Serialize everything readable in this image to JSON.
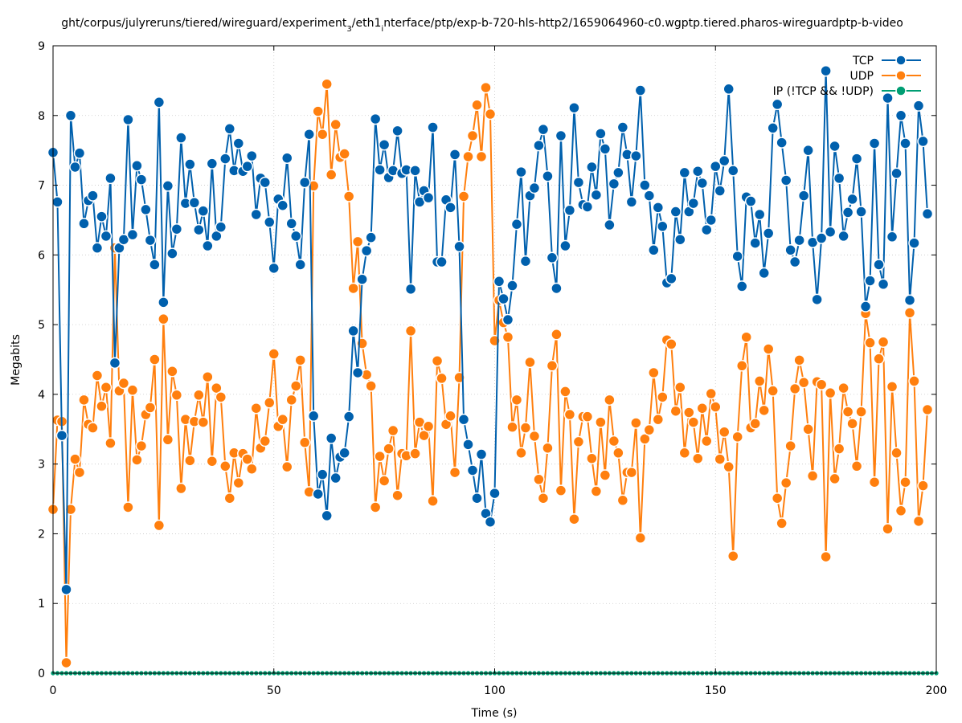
{
  "chart_data": {
    "type": "line",
    "title": "ght/corpus/julyreruns/tiered/wireguard/experiment_3/eth1_interface/ptp/exp-b-720-hls-http2/1659064960-c0.wgptp.tiered.pharos-wireguardptp-b-video",
    "xlabel": "Time (s)",
    "ylabel": "Megabits",
    "xlim": [
      0,
      200
    ],
    "ylim": [
      0,
      9
    ],
    "xticks": [
      0,
      50,
      100,
      150,
      200
    ],
    "yticks": [
      0,
      1,
      2,
      3,
      4,
      5,
      6,
      7,
      8,
      9
    ],
    "grid": true,
    "legend_position": "top-right",
    "x_step": 1,
    "series": [
      {
        "name": "TCP",
        "color": "#0060ad",
        "values": [
          7.47,
          6.76,
          3.41,
          1.2,
          8.0,
          7.26,
          7.46,
          6.45,
          6.78,
          6.85,
          6.1,
          6.55,
          6.27,
          7.1,
          4.45,
          6.1,
          6.22,
          7.94,
          6.29,
          7.28,
          7.08,
          6.65,
          6.21,
          5.86,
          8.19,
          5.32,
          6.99,
          6.02,
          6.37,
          7.68,
          6.74,
          7.3,
          6.75,
          6.36,
          6.63,
          6.13,
          7.31,
          6.27,
          6.4,
          7.38,
          7.81,
          7.21,
          7.6,
          7.2,
          7.27,
          7.42,
          6.58,
          7.1,
          7.04,
          6.47,
          5.81,
          6.8,
          6.71,
          7.39,
          6.45,
          6.27,
          5.86,
          7.04,
          7.73,
          3.69,
          2.57,
          2.85,
          2.26,
          3.37,
          2.8,
          3.1,
          3.16,
          3.68,
          4.91,
          4.31,
          5.65,
          6.06,
          6.25,
          7.95,
          7.22,
          7.58,
          7.11,
          7.21,
          7.78,
          7.17,
          7.22,
          5.51,
          7.21,
          6.76,
          6.92,
          6.82,
          7.83,
          5.9,
          5.9,
          6.79,
          6.68,
          7.44,
          6.12,
          3.64,
          3.28,
          2.91,
          2.51,
          3.14,
          2.29,
          2.17,
          2.58,
          5.62,
          5.37,
          5.07,
          5.56,
          6.44,
          7.19,
          5.91,
          6.85,
          6.96,
          7.57,
          7.8,
          7.13,
          5.96,
          5.52,
          7.71,
          6.13,
          6.64,
          8.11,
          7.04,
          6.72,
          6.69,
          7.26,
          6.86,
          7.74,
          7.52,
          6.43,
          7.02,
          7.18,
          7.83,
          7.44,
          6.76,
          7.42,
          8.36,
          7.0,
          6.85,
          6.07,
          6.68,
          6.41,
          5.6,
          5.66,
          6.62,
          6.22,
          7.18,
          6.62,
          6.74,
          7.2,
          7.03,
          6.36,
          6.5,
          7.27,
          6.92,
          7.35,
          8.38,
          7.21,
          5.98,
          5.55,
          6.83,
          6.77,
          6.17,
          6.58,
          5.74,
          6.31,
          7.82,
          8.16,
          7.61,
          7.07,
          6.07,
          5.9,
          6.21,
          6.85,
          7.5,
          6.18,
          5.36,
          6.24,
          8.64,
          6.33,
          7.56,
          7.1,
          6.27,
          6.61,
          6.8,
          7.38,
          6.62,
          5.26,
          5.63,
          7.6,
          5.86,
          5.58,
          8.25,
          6.26,
          7.17,
          8.0,
          7.6,
          5.35,
          6.17,
          8.14,
          7.63,
          6.59
        ]
      },
      {
        "name": "UDP",
        "color": "#ff7f0e",
        "values": [
          2.35,
          3.63,
          3.61,
          0.15,
          2.35,
          3.07,
          2.88,
          3.92,
          3.57,
          3.52,
          4.27,
          3.83,
          4.1,
          3.3,
          6.1,
          4.05,
          4.16,
          2.38,
          4.06,
          3.06,
          3.26,
          3.71,
          3.81,
          4.5,
          2.12,
          5.08,
          3.35,
          4.33,
          3.99,
          2.65,
          3.64,
          3.05,
          3.61,
          3.99,
          3.6,
          4.25,
          3.04,
          4.09,
          3.96,
          2.97,
          2.51,
          3.16,
          2.73,
          3.15,
          3.07,
          2.93,
          3.8,
          3.23,
          3.33,
          3.88,
          4.58,
          3.54,
          3.64,
          2.96,
          3.92,
          4.12,
          4.49,
          3.31,
          2.6,
          6.99,
          8.06,
          7.73,
          8.45,
          7.15,
          7.87,
          7.4,
          7.45,
          6.84,
          5.52,
          6.19,
          4.73,
          4.28,
          4.12,
          2.38,
          3.11,
          2.76,
          3.22,
          3.48,
          2.55,
          3.15,
          3.12,
          4.91,
          3.15,
          3.6,
          3.41,
          3.54,
          2.47,
          4.48,
          4.23,
          3.57,
          3.69,
          2.88,
          4.24,
          6.84,
          7.41,
          7.71,
          8.15,
          7.41,
          8.4,
          8.02,
          4.77,
          5.35,
          5.03,
          4.82,
          3.53,
          3.92,
          3.16,
          3.52,
          4.46,
          3.4,
          2.78,
          2.51,
          3.23,
          4.41,
          4.86,
          2.62,
          4.04,
          3.71,
          2.21,
          3.32,
          3.68,
          3.68,
          3.08,
          2.61,
          3.6,
          2.84,
          3.92,
          3.33,
          3.16,
          2.48,
          2.88,
          2.88,
          3.59,
          1.94,
          3.36,
          3.49,
          4.31,
          3.64,
          3.96,
          4.78,
          4.72,
          3.76,
          4.1,
          3.16,
          3.74,
          3.6,
          3.08,
          3.8,
          3.33,
          4.01,
          3.82,
          3.07,
          3.46,
          2.96,
          1.68,
          3.39,
          4.41,
          4.82,
          3.52,
          3.58,
          4.19,
          3.77,
          4.65,
          4.05,
          2.51,
          2.15,
          2.73,
          3.26,
          4.08,
          4.49,
          4.17,
          3.5,
          2.83,
          4.18,
          4.14,
          1.67,
          4.02,
          2.79,
          3.22,
          4.09,
          3.75,
          3.58,
          2.97,
          3.75,
          5.16,
          4.74,
          2.74,
          4.51,
          4.75,
          2.07,
          4.11,
          3.16,
          2.33,
          2.74,
          5.17,
          4.19,
          2.18,
          2.69,
          3.78
        ]
      },
      {
        "name": "IP (!TCP && !UDP)",
        "color": "#009e73",
        "values": [
          0,
          0,
          0,
          0,
          0,
          0,
          0,
          0,
          0,
          0,
          0,
          0,
          0,
          0,
          0,
          0,
          0,
          0,
          0,
          0,
          0,
          0,
          0,
          0,
          0,
          0,
          0,
          0,
          0,
          0,
          0,
          0,
          0,
          0,
          0,
          0,
          0,
          0,
          0,
          0,
          0,
          0,
          0,
          0,
          0,
          0,
          0,
          0,
          0,
          0,
          0,
          0,
          0,
          0,
          0,
          0,
          0,
          0,
          0,
          0,
          0,
          0,
          0,
          0,
          0,
          0,
          0,
          0,
          0,
          0,
          0,
          0,
          0,
          0,
          0,
          0,
          0,
          0,
          0,
          0,
          0,
          0,
          0,
          0,
          0,
          0,
          0,
          0,
          0,
          0,
          0,
          0,
          0,
          0,
          0,
          0,
          0,
          0,
          0,
          0,
          0,
          0,
          0,
          0,
          0,
          0,
          0,
          0,
          0,
          0,
          0,
          0,
          0,
          0,
          0,
          0,
          0,
          0,
          0,
          0,
          0,
          0,
          0,
          0,
          0,
          0,
          0,
          0,
          0,
          0,
          0,
          0,
          0,
          0,
          0,
          0,
          0,
          0,
          0,
          0,
          0,
          0,
          0,
          0,
          0,
          0,
          0,
          0,
          0,
          0,
          0,
          0,
          0,
          0,
          0,
          0,
          0,
          0,
          0,
          0,
          0,
          0,
          0,
          0,
          0,
          0,
          0,
          0,
          0,
          0,
          0,
          0,
          0,
          0,
          0,
          0,
          0,
          0,
          0,
          0,
          0,
          0,
          0,
          0,
          0,
          0,
          0,
          0,
          0,
          0,
          0,
          0,
          0,
          0,
          0,
          0,
          0,
          0,
          0,
          0,
          0
        ]
      }
    ]
  }
}
